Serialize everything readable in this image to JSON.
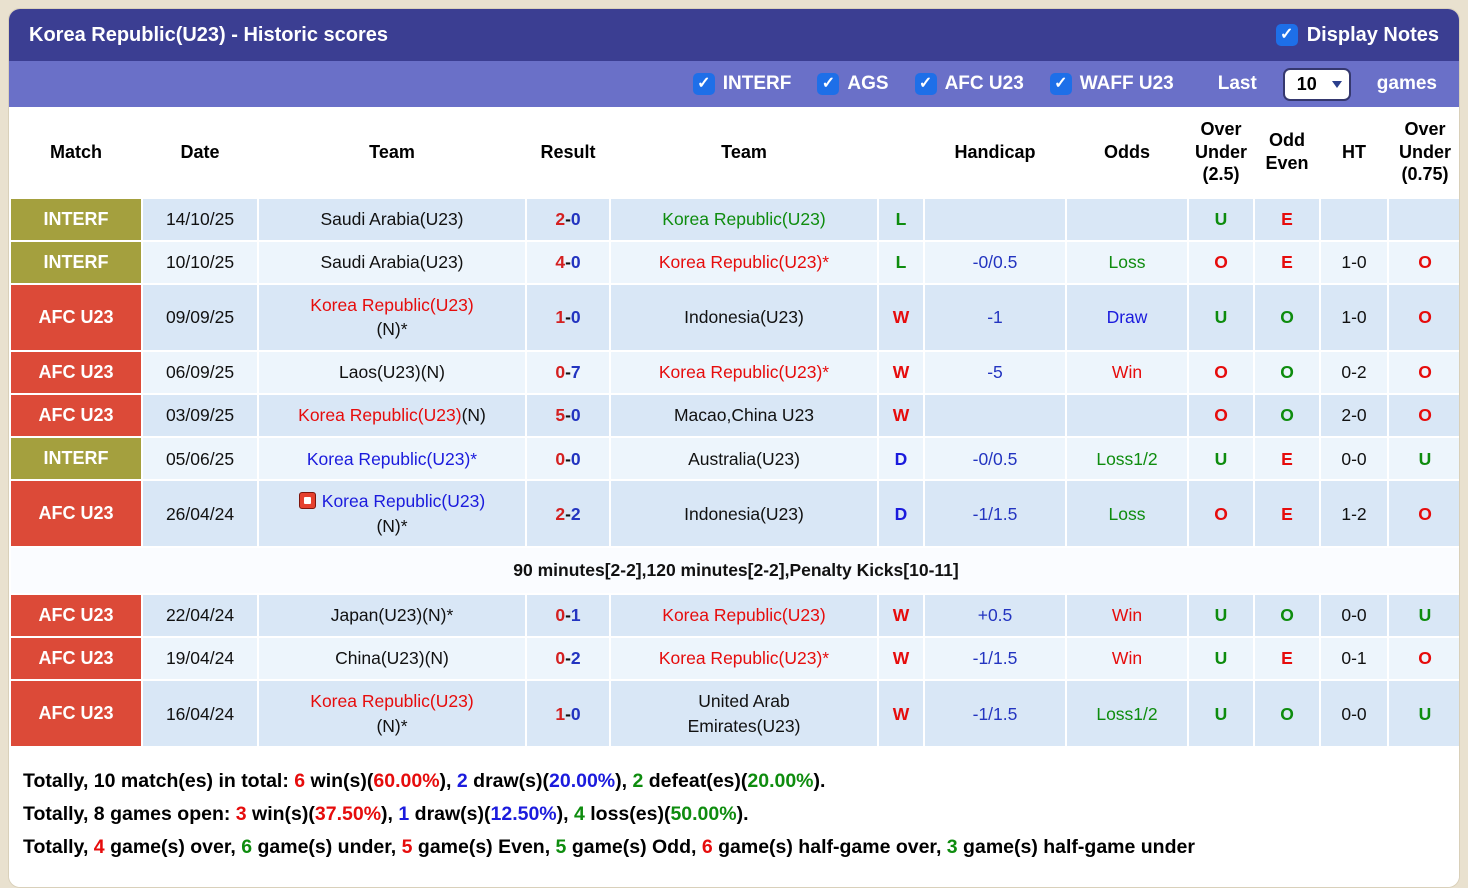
{
  "palette": {
    "frame": "#e9e1cf",
    "title_bar": "#3b3e92",
    "filter_bar": "#6a70c8",
    "checkbox": "#1e6fe8",
    "badge_interf": "#a4a03e",
    "badge_afc": "#dc4a38",
    "row_dark": "#d9e7f6",
    "row_light": "#edf5fc",
    "note_row": "#fafcff"
  },
  "colors": {
    "black": "#111111",
    "red": "#e60c0c",
    "green": "#0e8c0e",
    "blue": "#1b1bdd",
    "navy": "#2334c0",
    "score_home": "#d42020",
    "score_away": "#2334c0"
  },
  "header": {
    "title": "Korea Republic(U23) - Historic scores",
    "display_notes_label": "Display Notes",
    "display_notes_checked": true
  },
  "filters": {
    "leagues": [
      {
        "label": "INTERF",
        "checked": true
      },
      {
        "label": "AGS",
        "checked": true
      },
      {
        "label": "AFC U23",
        "checked": true
      },
      {
        "label": "WAFF U23",
        "checked": true
      }
    ],
    "last_label": "Last",
    "games_count": "10",
    "games_label": "games"
  },
  "table": {
    "columns": [
      {
        "id": "match",
        "label": "Match"
      },
      {
        "id": "date",
        "label": "Date"
      },
      {
        "id": "team-home",
        "label": "Team"
      },
      {
        "id": "result",
        "label": "Result"
      },
      {
        "id": "team-away",
        "label": "Team"
      },
      {
        "id": "wdl",
        "label": ""
      },
      {
        "id": "handicap",
        "label": "Handicap"
      },
      {
        "id": "odds",
        "label": "Odds"
      },
      {
        "id": "over-under-2-5",
        "label": "Over\nUnder\n(2.5)"
      },
      {
        "id": "odd-even",
        "label": "Odd\nEven"
      },
      {
        "id": "ht",
        "label": "HT"
      },
      {
        "id": "over-under-0-75",
        "label": "Over\nUnder\n(0.75)"
      }
    ],
    "rows": [
      {
        "competition": "INTERF",
        "badge": "olive",
        "shade": "dark",
        "date": "14/10/25",
        "home": [
          {
            "t": "Saudi Arabia(U23)"
          }
        ],
        "score": {
          "h": "2",
          "a": "0"
        },
        "away": [
          {
            "t": "Korea Republic(U23)",
            "c": "green"
          }
        ],
        "wdl": {
          "t": "L",
          "c": "green"
        },
        "handicap": null,
        "odds": null,
        "ou25": {
          "t": "U",
          "c": "green"
        },
        "oddeven": {
          "t": "E",
          "c": "red"
        },
        "ht": null,
        "ou075": null,
        "icon": false,
        "note": null
      },
      {
        "competition": "INTERF",
        "badge": "olive",
        "shade": "light",
        "date": "10/10/25",
        "home": [
          {
            "t": "Saudi Arabia(U23)"
          }
        ],
        "score": {
          "h": "4",
          "a": "0"
        },
        "away": [
          {
            "t": "Korea Republic(U23)*",
            "c": "red"
          }
        ],
        "wdl": {
          "t": "L",
          "c": "green"
        },
        "handicap": {
          "t": "-0/0.5",
          "c": "navy"
        },
        "odds": {
          "t": "Loss",
          "c": "green"
        },
        "ou25": {
          "t": "O",
          "c": "red"
        },
        "oddeven": {
          "t": "E",
          "c": "red"
        },
        "ht": "1-0",
        "ou075": {
          "t": "O",
          "c": "red"
        },
        "icon": false,
        "note": null
      },
      {
        "competition": "AFC U23",
        "badge": "afc",
        "shade": "dark",
        "date": "09/09/25",
        "home": [
          {
            "t": "Korea Republic(U23)",
            "c": "red"
          },
          {
            "t": "(N)*",
            "br": true
          }
        ],
        "score": {
          "h": "1",
          "a": "0"
        },
        "away": [
          {
            "t": "Indonesia(U23)"
          }
        ],
        "wdl": {
          "t": "W",
          "c": "red"
        },
        "handicap": {
          "t": "-1",
          "c": "navy"
        },
        "odds": {
          "t": "Draw",
          "c": "blue"
        },
        "ou25": {
          "t": "U",
          "c": "green"
        },
        "oddeven": {
          "t": "O",
          "c": "green"
        },
        "ht": "1-0",
        "ou075": {
          "t": "O",
          "c": "red"
        },
        "icon": false,
        "note": null
      },
      {
        "competition": "AFC U23",
        "badge": "afc",
        "shade": "light",
        "date": "06/09/25",
        "home": [
          {
            "t": "Laos(U23)(N)"
          }
        ],
        "score": {
          "h": "0",
          "a": "7"
        },
        "away": [
          {
            "t": "Korea Republic(U23)*",
            "c": "red"
          }
        ],
        "wdl": {
          "t": "W",
          "c": "red"
        },
        "handicap": {
          "t": "-5",
          "c": "navy"
        },
        "odds": {
          "t": "Win",
          "c": "red"
        },
        "ou25": {
          "t": "O",
          "c": "red"
        },
        "oddeven": {
          "t": "O",
          "c": "green"
        },
        "ht": "0-2",
        "ou075": {
          "t": "O",
          "c": "red"
        },
        "icon": false,
        "note": null
      },
      {
        "competition": "AFC U23",
        "badge": "afc",
        "shade": "dark",
        "date": "03/09/25",
        "home": [
          {
            "t": "Korea Republic(U23)",
            "c": "red"
          },
          {
            "t": "(N)"
          }
        ],
        "score": {
          "h": "5",
          "a": "0"
        },
        "away": [
          {
            "t": "Macao,China U23"
          }
        ],
        "wdl": {
          "t": "W",
          "c": "red"
        },
        "handicap": null,
        "odds": null,
        "ou25": {
          "t": "O",
          "c": "red"
        },
        "oddeven": {
          "t": "O",
          "c": "green"
        },
        "ht": "2-0",
        "ou075": {
          "t": "O",
          "c": "red"
        },
        "icon": false,
        "note": null
      },
      {
        "competition": "INTERF",
        "badge": "olive",
        "shade": "light",
        "date": "05/06/25",
        "home": [
          {
            "t": "Korea Republic(U23)*",
            "c": "blue"
          }
        ],
        "score": {
          "h": "0",
          "a": "0"
        },
        "away": [
          {
            "t": "Australia(U23)"
          }
        ],
        "wdl": {
          "t": "D",
          "c": "blue"
        },
        "handicap": {
          "t": "-0/0.5",
          "c": "navy"
        },
        "odds": {
          "t": "Loss1/2",
          "c": "green"
        },
        "ou25": {
          "t": "U",
          "c": "green"
        },
        "oddeven": {
          "t": "E",
          "c": "red"
        },
        "ht": "0-0",
        "ou075": {
          "t": "U",
          "c": "green"
        },
        "icon": false,
        "note": null
      },
      {
        "competition": "AFC U23",
        "badge": "afc",
        "shade": "dark",
        "date": "26/04/24",
        "home": [
          {
            "t": "Korea Republic(U23)",
            "c": "blue"
          },
          {
            "t": "(N)*",
            "br": true
          }
        ],
        "score": {
          "h": "2",
          "a": "2"
        },
        "away": [
          {
            "t": "Indonesia(U23)"
          }
        ],
        "wdl": {
          "t": "D",
          "c": "blue"
        },
        "handicap": {
          "t": "-1/1.5",
          "c": "navy"
        },
        "odds": {
          "t": "Loss",
          "c": "green"
        },
        "ou25": {
          "t": "O",
          "c": "red"
        },
        "oddeven": {
          "t": "E",
          "c": "red"
        },
        "ht": "1-2",
        "ou075": {
          "t": "O",
          "c": "red"
        },
        "icon": true,
        "note": "90 minutes[2-2],120 minutes[2-2],Penalty Kicks[10-11]"
      },
      {
        "competition": "AFC U23",
        "badge": "afc",
        "shade": "dark",
        "date": "22/04/24",
        "home": [
          {
            "t": "Japan(U23)(N)*"
          }
        ],
        "score": {
          "h": "0",
          "a": "1"
        },
        "away": [
          {
            "t": "Korea Republic(U23)",
            "c": "red"
          }
        ],
        "wdl": {
          "t": "W",
          "c": "red"
        },
        "handicap": {
          "t": "+0.5",
          "c": "navy"
        },
        "odds": {
          "t": "Win",
          "c": "red"
        },
        "ou25": {
          "t": "U",
          "c": "green"
        },
        "oddeven": {
          "t": "O",
          "c": "green"
        },
        "ht": "0-0",
        "ou075": {
          "t": "U",
          "c": "green"
        },
        "icon": false,
        "note": null
      },
      {
        "competition": "AFC U23",
        "badge": "afc",
        "shade": "light",
        "date": "19/04/24",
        "home": [
          {
            "t": "China(U23)(N)"
          }
        ],
        "score": {
          "h": "0",
          "a": "2"
        },
        "away": [
          {
            "t": "Korea Republic(U23)*",
            "c": "red"
          }
        ],
        "wdl": {
          "t": "W",
          "c": "red"
        },
        "handicap": {
          "t": "-1/1.5",
          "c": "navy"
        },
        "odds": {
          "t": "Win",
          "c": "red"
        },
        "ou25": {
          "t": "U",
          "c": "green"
        },
        "oddeven": {
          "t": "E",
          "c": "red"
        },
        "ht": "0-1",
        "ou075": {
          "t": "O",
          "c": "red"
        },
        "icon": false,
        "note": null
      },
      {
        "competition": "AFC U23",
        "badge": "afc",
        "shade": "dark",
        "date": "16/04/24",
        "home": [
          {
            "t": "Korea Republic(U23)",
            "c": "red"
          },
          {
            "t": "(N)*",
            "br": true
          }
        ],
        "score": {
          "h": "1",
          "a": "0"
        },
        "away": [
          {
            "t": "United Arab"
          },
          {
            "t": "Emirates(U23)",
            "br": true
          }
        ],
        "wdl": {
          "t": "W",
          "c": "red"
        },
        "handicap": {
          "t": "-1/1.5",
          "c": "navy"
        },
        "odds": {
          "t": "Loss1/2",
          "c": "green"
        },
        "ou25": {
          "t": "U",
          "c": "green"
        },
        "oddeven": {
          "t": "O",
          "c": "green"
        },
        "ht": "0-0",
        "ou075": {
          "t": "U",
          "c": "green"
        },
        "icon": false,
        "note": null
      }
    ]
  },
  "summary": {
    "lines": [
      [
        {
          "t": "Totally, "
        },
        {
          "t": "10",
          "b": true
        },
        {
          "t": " match(es) in total: "
        },
        {
          "t": "6",
          "c": "red",
          "b": true
        },
        {
          "t": " win(s)("
        },
        {
          "t": "60.00%",
          "c": "red",
          "b": true
        },
        {
          "t": "), "
        },
        {
          "t": "2",
          "c": "blue",
          "b": true
        },
        {
          "t": " draw(s)("
        },
        {
          "t": "20.00%",
          "c": "blue",
          "b": true
        },
        {
          "t": "), "
        },
        {
          "t": "2",
          "c": "green",
          "b": true
        },
        {
          "t": " defeat(es)("
        },
        {
          "t": "20.00%",
          "c": "green",
          "b": true
        },
        {
          "t": ")."
        }
      ],
      [
        {
          "t": "Totally, "
        },
        {
          "t": "8",
          "b": true
        },
        {
          "t": " games open: "
        },
        {
          "t": "3",
          "c": "red",
          "b": true
        },
        {
          "t": " win(s)("
        },
        {
          "t": "37.50%",
          "c": "red",
          "b": true
        },
        {
          "t": "), "
        },
        {
          "t": "1",
          "c": "blue",
          "b": true
        },
        {
          "t": " draw(s)("
        },
        {
          "t": "12.50%",
          "c": "blue",
          "b": true
        },
        {
          "t": "), "
        },
        {
          "t": "4",
          "c": "green",
          "b": true
        },
        {
          "t": " loss(es)("
        },
        {
          "t": "50.00%",
          "c": "green",
          "b": true
        },
        {
          "t": ")."
        }
      ],
      [
        {
          "t": "Totally, "
        },
        {
          "t": "4",
          "c": "red",
          "b": true
        },
        {
          "t": " game(s) over, "
        },
        {
          "t": "6",
          "c": "green",
          "b": true
        },
        {
          "t": " game(s) under, "
        },
        {
          "t": "5",
          "c": "red",
          "b": true
        },
        {
          "t": " game(s) Even, "
        },
        {
          "t": "5",
          "c": "green",
          "b": true
        },
        {
          "t": " game(s) Odd, "
        },
        {
          "t": "6",
          "c": "red",
          "b": true
        },
        {
          "t": " game(s) half-game over, "
        },
        {
          "t": "3",
          "c": "green",
          "b": true
        },
        {
          "t": " game(s) half-game under"
        }
      ]
    ]
  }
}
